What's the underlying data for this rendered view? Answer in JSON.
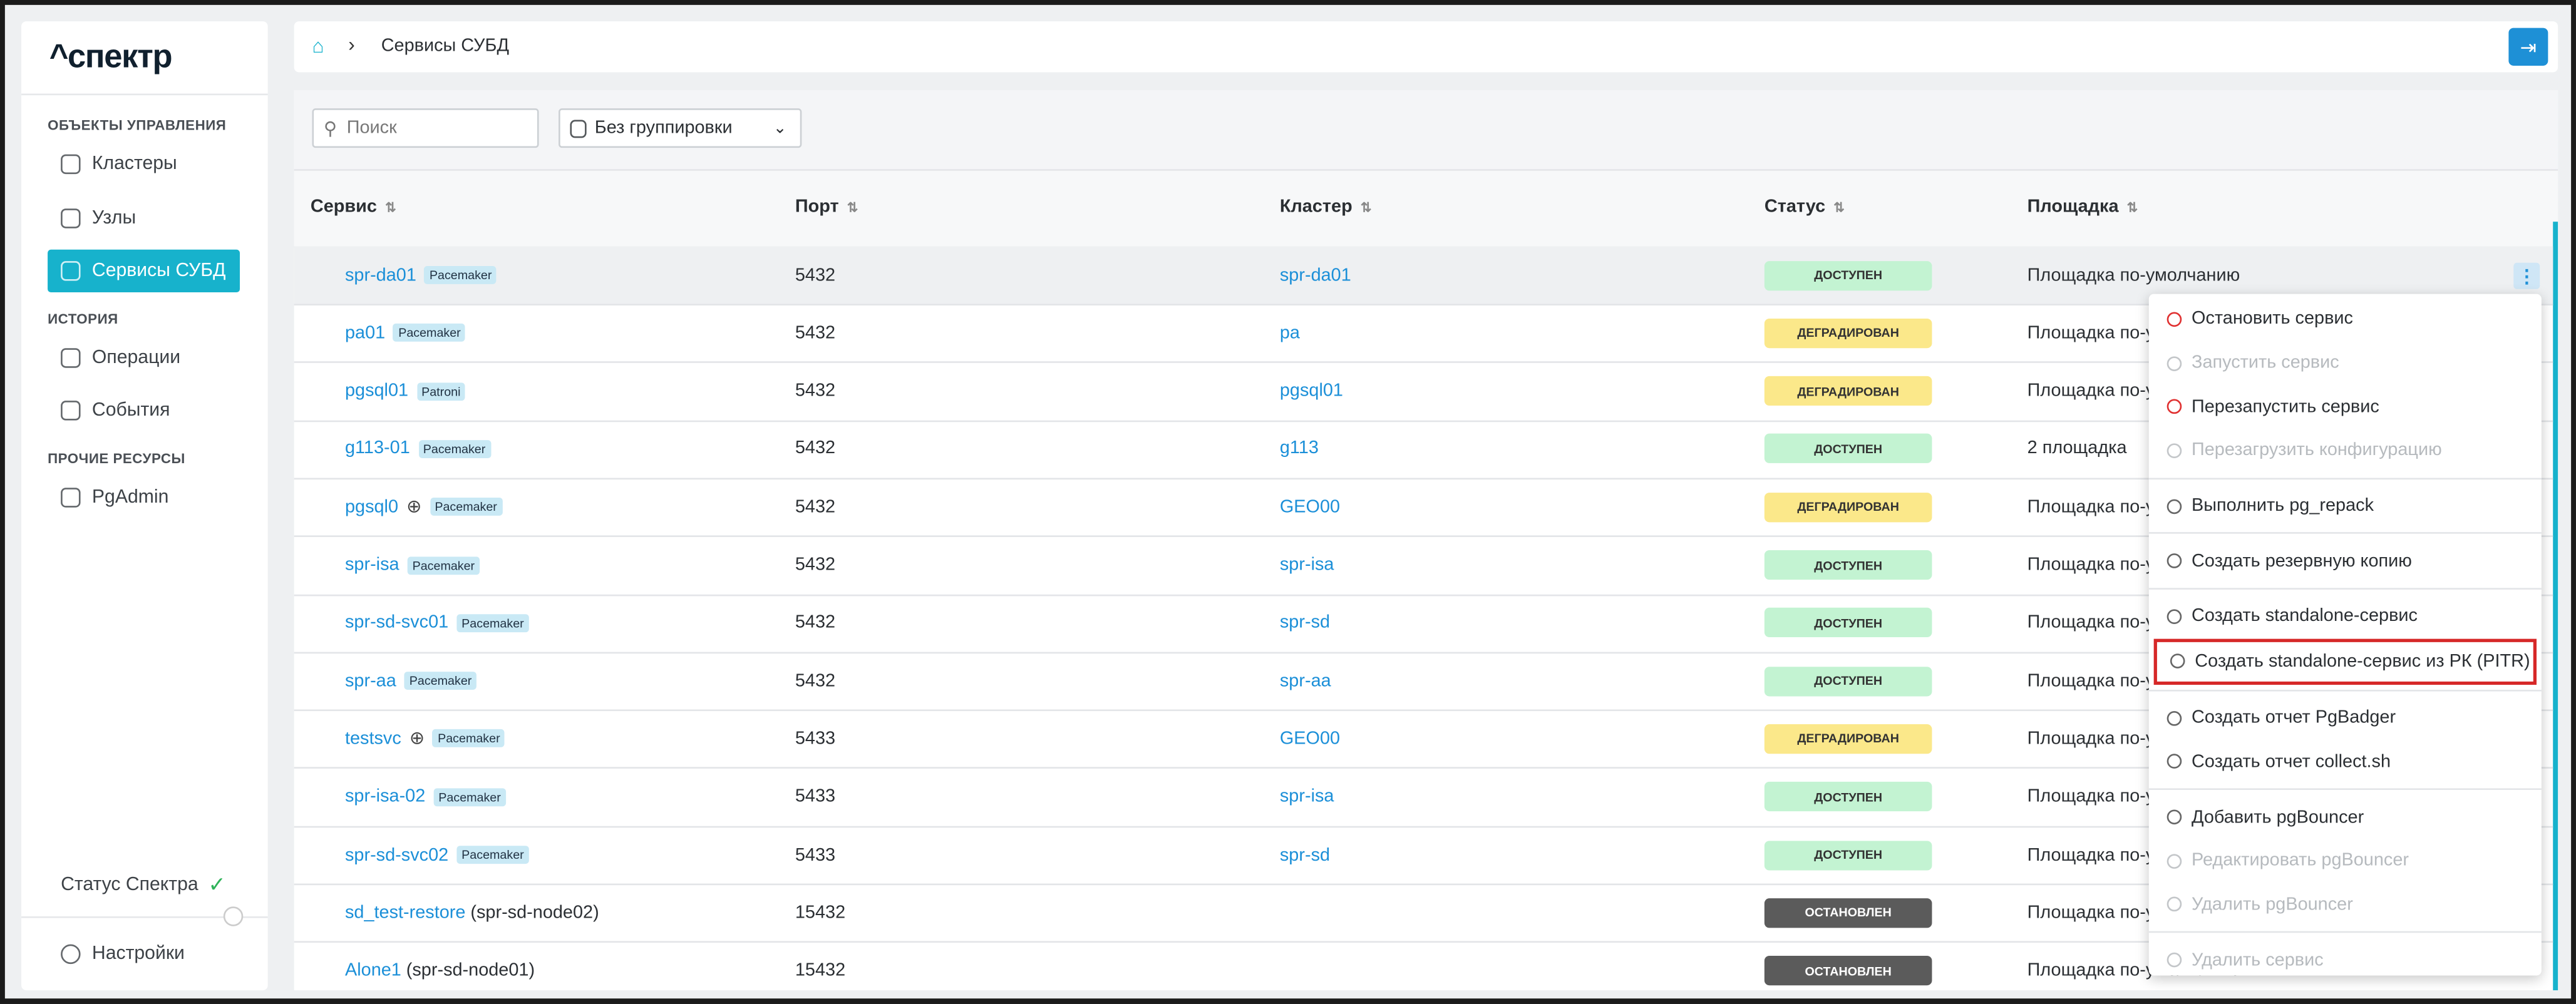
{
  "sidebar": {
    "logo": "^спектр",
    "sections": [
      {
        "title": "ОБЪЕКТЫ УПРАВЛЕНИЯ",
        "items": [
          "Кластеры",
          "Узлы",
          "Сервисы СУБД"
        ]
      },
      {
        "title": "ИСТОРИЯ",
        "items": [
          "Операции",
          "События"
        ]
      },
      {
        "title": "ПРОЧИЕ РЕСУРСЫ",
        "items": [
          "PgAdmin"
        ]
      }
    ],
    "active": [
      0,
      2
    ],
    "status": "Статус Спектра",
    "settings": "Настройки"
  },
  "breadcrumb": {
    "current": "Сервисы СУБД"
  },
  "toolbar": {
    "search_placeholder": "Поиск",
    "grouping": "Без группировки"
  },
  "table": {
    "columns": [
      "Сервис",
      "Порт",
      "Кластер",
      "Статус",
      "Площадка"
    ],
    "rows": [
      {
        "service": "spr-da01",
        "tag": "Pacemaker",
        "port": "5432",
        "cluster": "spr-da01",
        "status": "ДОСТУПЕН",
        "status_bg": "#c3f3d2",
        "site": "Площадка по-умолчанию",
        "selected": true
      },
      {
        "service": "pa01",
        "tag": "Pacemaker",
        "port": "5432",
        "cluster": "pa",
        "status": "ДЕГРАДИРОВАН",
        "status_bg": "#fbe88a",
        "site": "Площадка по-умолчанию"
      },
      {
        "service": "pgsql01",
        "tag": "Patroni",
        "port": "5432",
        "cluster": "pgsql01",
        "status": "ДЕГРАДИРОВАН",
        "status_bg": "#fbe88a",
        "site": "Площадка по-умолчанию"
      },
      {
        "service": "g113-01",
        "tag": "Pacemaker",
        "port": "5432",
        "cluster": "g113",
        "status": "ДОСТУПЕН",
        "status_bg": "#c3f3d2",
        "site": "2 площадка"
      },
      {
        "service": "pgsql0",
        "globe": true,
        "tag": "Pacemaker",
        "port": "5432",
        "cluster": "GEO00",
        "status": "ДЕГРАДИРОВАН",
        "status_bg": "#fbe88a",
        "site": "Площадка по-умолчанию"
      },
      {
        "service": "spr-isa",
        "tag": "Pacemaker",
        "port": "5432",
        "cluster": "spr-isa",
        "status": "ДОСТУПЕН",
        "status_bg": "#c3f3d2",
        "site": "Площадка по-умолчанию"
      },
      {
        "service": "spr-sd-svc01",
        "tag": "Pacemaker",
        "port": "5432",
        "cluster": "spr-sd",
        "status": "ДОСТУПЕН",
        "status_bg": "#c3f3d2",
        "site": "Площадка по-умолчанию"
      },
      {
        "service": "spr-aa",
        "tag": "Pacemaker",
        "port": "5432",
        "cluster": "spr-aa",
        "status": "ДОСТУПЕН",
        "status_bg": "#c3f3d2",
        "site": "Площадка по-умолчанию"
      },
      {
        "service": "testsvc",
        "globe": true,
        "tag": "Pacemaker",
        "port": "5433",
        "cluster": "GEO00",
        "status": "ДЕГРАДИРОВАН",
        "status_bg": "#fbe88a",
        "site": "Площадка по-умолчанию"
      },
      {
        "service": "spr-isa-02",
        "tag": "Pacemaker",
        "port": "5433",
        "cluster": "spr-isa",
        "status": "ДОСТУПЕН",
        "status_bg": "#c3f3d2",
        "site": "Площадка по-умолчанию"
      },
      {
        "service": "spr-sd-svc02",
        "tag": "Pacemaker",
        "port": "5433",
        "cluster": "spr-sd",
        "status": "ДОСТУПЕН",
        "status_bg": "#c3f3d2",
        "site": "Площадка по-умолчанию"
      },
      {
        "service": "sd_test-restore",
        "host": "(spr-sd-node02)",
        "port": "15432",
        "status": "ОСТАНОВЛЕН",
        "status_bg": "#5b5b5b",
        "site": "Площадка по-умолчанию"
      },
      {
        "service": "Alone1",
        "host": "(spr-sd-node01)",
        "port": "15432",
        "status": "ОСТАНОВЛЕН",
        "status_bg": "#5b5b5b",
        "site": "Площадка по-умолчанию"
      }
    ]
  },
  "menu": {
    "groups": [
      [
        {
          "label": "Остановить сервис",
          "icon_color": "#e03131"
        },
        {
          "label": "Запустить сервис",
          "disabled": true
        },
        {
          "label": "Перезапустить сервис",
          "icon_color": "#e03131"
        },
        {
          "label": "Перезагрузить конфигурацию",
          "disabled": true
        }
      ],
      [
        {
          "label": "Выполнить pg_repack"
        }
      ],
      [
        {
          "label": "Создать резервную копию"
        }
      ],
      [
        {
          "label": "Создать standalone-сервис"
        },
        {
          "label": "Создать standalone-сервис из РК (PITR)",
          "highlighted": true
        }
      ],
      [
        {
          "label": "Создать отчет PgBadger"
        },
        {
          "label": "Создать отчет collect.sh"
        }
      ],
      [
        {
          "label": "Добавить pgBouncer"
        },
        {
          "label": "Редактировать pgBouncer",
          "disabled": true
        },
        {
          "label": "Удалить pgBouncer",
          "disabled": true
        }
      ],
      [
        {
          "label": "Удалить сервис",
          "disabled": true
        }
      ]
    ]
  }
}
